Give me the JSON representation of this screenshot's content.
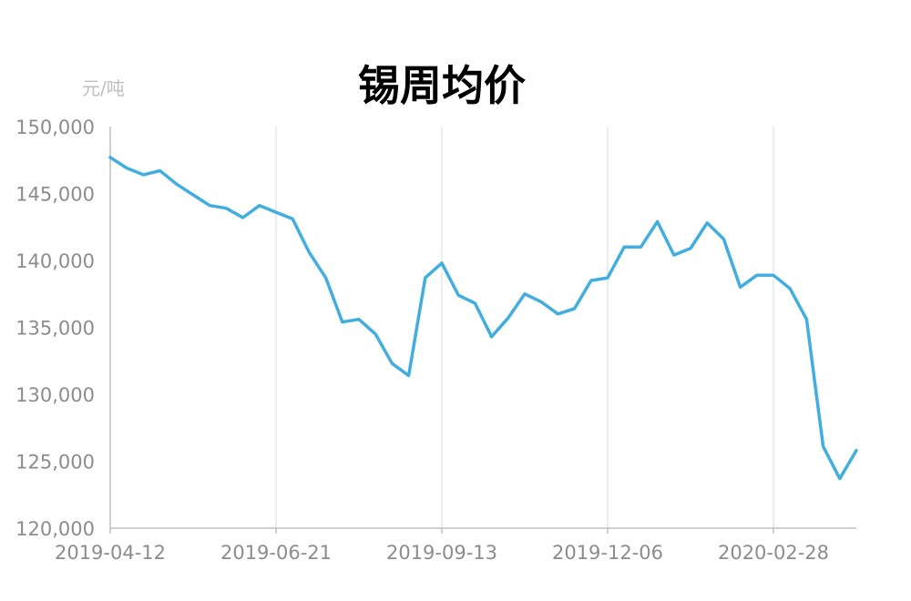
{
  "chart_data": {
    "type": "line",
    "title": "锡周均价",
    "unit_label": "元/吨",
    "ylim": [
      120000,
      150000
    ],
    "yticks": [
      120000,
      125000,
      130000,
      135000,
      140000,
      145000,
      150000
    ],
    "ytick_labels": [
      "120,000",
      "125,000",
      "130,000",
      "135,000",
      "140,000",
      "145,000",
      "150,000"
    ],
    "xtick_labels": [
      "2019-04-12",
      "2019-06-21",
      "2019-09-13",
      "2019-12-06",
      "2020-02-28"
    ],
    "xtick_indices": [
      0,
      10,
      20,
      30,
      40
    ],
    "grid": "vertical",
    "legend": "none",
    "colors": {
      "series": "#41aedf"
    },
    "series": [
      {
        "values": [
          147700,
          146900,
          146400,
          146700,
          145700,
          144900,
          144100,
          143900,
          143200,
          144100,
          143600,
          143100,
          140600,
          138700,
          135400,
          135600,
          134500,
          132300,
          131400,
          138700,
          139800,
          137400,
          136800,
          134300,
          135700,
          137500,
          136900,
          136000,
          136400,
          138500,
          138700,
          141000,
          141000,
          142900,
          140400,
          140900,
          142800,
          141600,
          138000,
          138900,
          138900,
          137900,
          135600,
          126100,
          123700,
          125800
        ]
      }
    ]
  }
}
